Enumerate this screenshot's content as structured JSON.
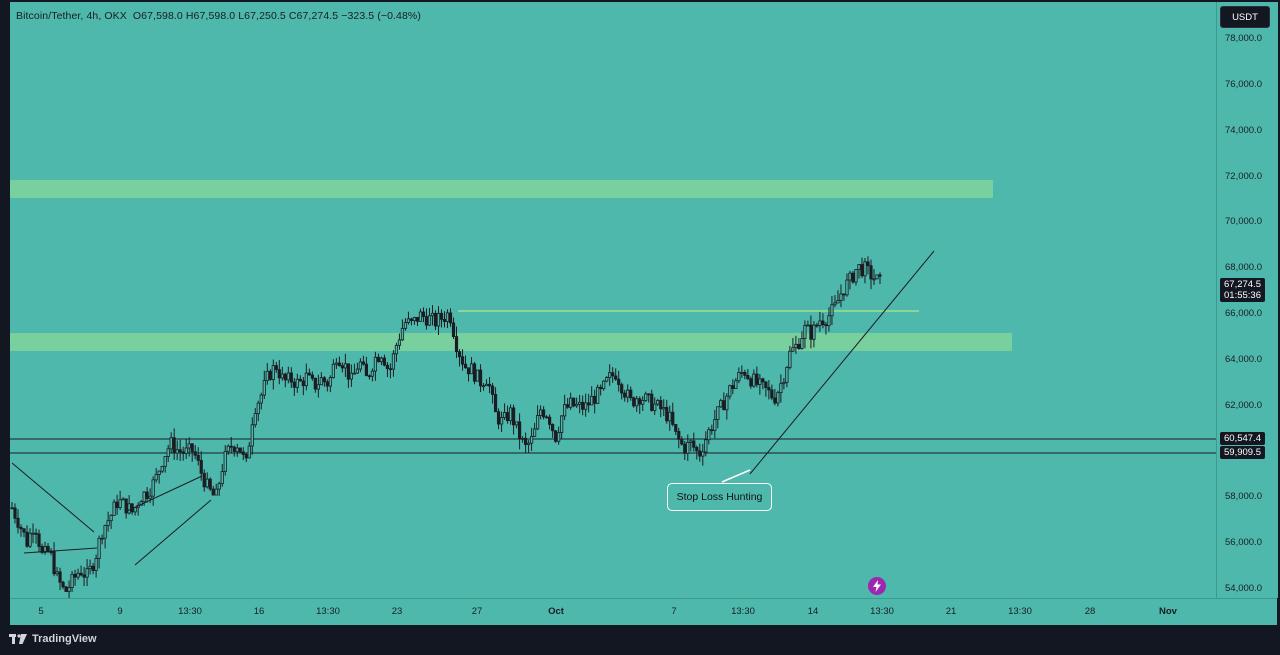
{
  "header": {
    "symbol": "Bitcoin/Tether, 4h, OKX",
    "ohlc": "O67,598.0  H67,598.0  L67,250.5  C67,274.5  −323.5 (−0.48%)"
  },
  "price_axis": {
    "currency_button": "USDT",
    "ticks": [
      "78,000.0",
      "76,000.0",
      "74,000.0",
      "72,000.0",
      "70,000.0",
      "68,000.0",
      "66,000.0",
      "64,000.0",
      "62,000.0",
      "60,000.0",
      "58,000.0",
      "56,000.0",
      "54,000.0"
    ],
    "tick_values": [
      78000,
      76000,
      74000,
      72000,
      70000,
      68000,
      66000,
      64000,
      62000,
      60000,
      58000,
      56000,
      54000
    ],
    "current_price": "67,274.5",
    "countdown": "01:55:36",
    "level_upper": "60,547.4",
    "level_lower": "59,909.5"
  },
  "time_axis": {
    "labels": [
      {
        "text": "5",
        "bold": false
      },
      {
        "text": "9",
        "bold": false
      },
      {
        "text": "13:30",
        "bold": false
      },
      {
        "text": "16",
        "bold": false
      },
      {
        "text": "13:30",
        "bold": false
      },
      {
        "text": "23",
        "bold": false
      },
      {
        "text": "27",
        "bold": false
      },
      {
        "text": "Oct",
        "bold": true
      },
      {
        "text": "7",
        "bold": false
      },
      {
        "text": "13:30",
        "bold": false
      },
      {
        "text": "14",
        "bold": false
      },
      {
        "text": "13:30",
        "bold": false
      },
      {
        "text": "21",
        "bold": false
      },
      {
        "text": "13:30",
        "bold": false
      },
      {
        "text": "28",
        "bold": false
      },
      {
        "text": "Nov",
        "bold": true
      }
    ]
  },
  "annotations": {
    "callout_text": "Stop Loss Hunting"
  },
  "footer": {
    "brand": "TradingView"
  },
  "colors": {
    "background": "#4db8ab",
    "zone": "#7fd39a",
    "candle": "#1b1d23",
    "frame": "#131722"
  },
  "icons": [
    "tradingview-logo-icon",
    "flash-icon"
  ],
  "chart_data": {
    "type": "candlestick",
    "title": "Bitcoin/Tether, 4h, OKX",
    "ylim": [
      53500,
      78800
    ],
    "close_path": [
      57500,
      56800,
      56000,
      56900,
      55400,
      55600,
      54400,
      53800,
      54300,
      54800,
      54500,
      55300,
      56600,
      57100,
      57800,
      57600,
      57300,
      58000,
      58200,
      58700,
      59700,
      60300,
      60000,
      59900,
      60000,
      59100,
      58300,
      57900,
      59500,
      60200,
      60300,
      59300,
      61800,
      62400,
      63300,
      63700,
      63000,
      63100,
      62900,
      63200,
      62800,
      63100,
      62900,
      64200,
      63800,
      63000,
      63900,
      63100,
      64000,
      64300,
      63400,
      64700,
      65600,
      65500,
      65900,
      65800,
      65600,
      65800,
      66000,
      64500,
      63700,
      63500,
      63000,
      63200,
      61600,
      61200,
      61700,
      60800,
      60100,
      60500,
      61800,
      61600,
      60600,
      61700,
      62000,
      61900,
      61900,
      62300,
      62500,
      63100,
      63400,
      62700,
      62100,
      62400,
      62200,
      62000,
      61800,
      61500,
      60600,
      60100,
      60300,
      59800,
      60600,
      61300,
      61900,
      62600,
      63100,
      63500,
      63100,
      62800,
      62600,
      62300,
      63000,
      64200,
      64600,
      65300,
      65100,
      65700,
      65800,
      66200,
      67000,
      67400,
      68000,
      67900,
      67600,
      67300
    ]
  }
}
